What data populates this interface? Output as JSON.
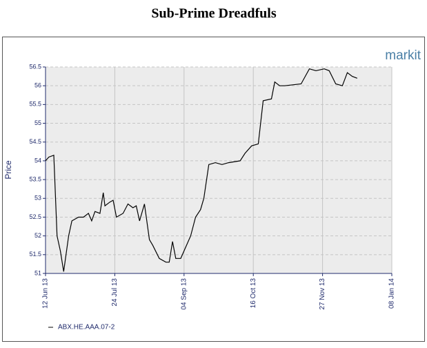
{
  "chart_data": {
    "type": "line",
    "title": "Sub-Prime Dreadfuls",
    "logo": "markit",
    "y_label": "Price",
    "x": [
      "2013-06-12",
      "2013-06-14",
      "2013-06-17",
      "2013-06-19",
      "2013-06-21",
      "2013-06-23",
      "2013-06-26",
      "2013-06-28",
      "2013-07-02",
      "2013-07-05",
      "2013-07-08",
      "2013-07-10",
      "2013-07-12",
      "2013-07-15",
      "2013-07-17",
      "2013-07-18",
      "2013-07-21",
      "2013-07-23",
      "2013-07-25",
      "2013-07-29",
      "2013-08-01",
      "2013-08-04",
      "2013-08-06",
      "2013-08-08",
      "2013-08-11",
      "2013-08-14",
      "2013-08-16",
      "2013-08-20",
      "2013-08-24",
      "2013-08-26",
      "2013-08-28",
      "2013-08-30",
      "2013-09-02",
      "2013-09-04",
      "2013-09-08",
      "2013-09-11",
      "2013-09-14",
      "2013-09-16",
      "2013-09-19",
      "2013-09-23",
      "2013-09-27",
      "2013-10-01",
      "2013-10-08",
      "2013-10-11",
      "2013-10-15",
      "2013-10-19",
      "2013-10-22",
      "2013-10-27",
      "2013-10-29",
      "2013-11-01",
      "2013-11-04",
      "2013-11-14",
      "2013-11-19",
      "2013-11-23",
      "2013-11-28",
      "2013-12-01",
      "2013-12-05",
      "2013-12-09",
      "2013-12-12",
      "2013-12-15",
      "2013-12-18"
    ],
    "series": [
      {
        "name": "ABX.HE.AAA.07-2",
        "color": "#000000",
        "values": [
          54.0,
          54.1,
          54.15,
          52.0,
          51.6,
          51.05,
          52.0,
          52.4,
          52.5,
          52.5,
          52.6,
          52.4,
          52.65,
          52.6,
          53.15,
          52.8,
          52.9,
          52.95,
          52.5,
          52.6,
          52.85,
          52.75,
          52.8,
          52.4,
          52.85,
          51.9,
          51.75,
          51.4,
          51.3,
          51.3,
          51.85,
          51.4,
          51.4,
          51.6,
          52.0,
          52.5,
          52.7,
          53.0,
          53.9,
          53.95,
          53.9,
          53.95,
          54.0,
          54.2,
          54.4,
          54.45,
          55.6,
          55.65,
          56.1,
          56.0,
          56.0,
          56.05,
          56.45,
          56.4,
          56.45,
          56.4,
          56.05,
          56.0,
          56.35,
          56.25,
          56.2
        ]
      }
    ],
    "xlim": [
      "2013-06-12",
      "2014-01-08"
    ],
    "xticks": [
      {
        "value": "2013-06-12",
        "label": "12 Jun 13"
      },
      {
        "value": "2013-07-24",
        "label": "24 Jul 13"
      },
      {
        "value": "2013-09-04",
        "label": "04 Sep 13"
      },
      {
        "value": "2013-10-16",
        "label": "16 Oct 13"
      },
      {
        "value": "2013-11-27",
        "label": "27 Nov 13"
      },
      {
        "value": "2014-01-08",
        "label": "08 Jan 14"
      }
    ],
    "ylim": [
      51,
      56.5
    ],
    "yticks": [
      51,
      51.5,
      52,
      52.5,
      53,
      53.5,
      54,
      54.5,
      55,
      55.5,
      56,
      56.5
    ],
    "grid": true
  }
}
